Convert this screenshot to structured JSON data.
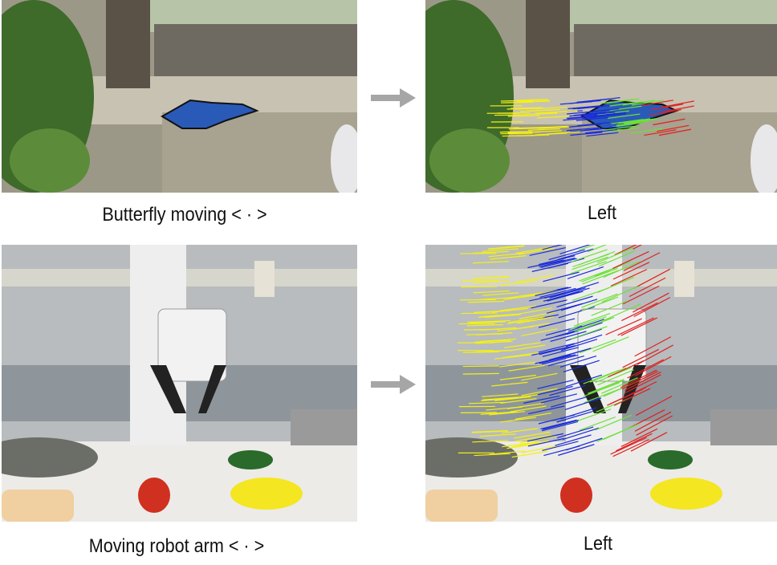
{
  "rows": [
    {
      "input_caption": "Butterfly moving < · >",
      "output_caption": "Left"
    },
    {
      "input_caption": "Moving robot arm < · >",
      "output_caption": "Left"
    }
  ],
  "flow_colors": [
    "#f4f018",
    "#1a2bd8",
    "#6fe03a",
    "#e02020"
  ],
  "arrow_color": "#a6a6a6"
}
